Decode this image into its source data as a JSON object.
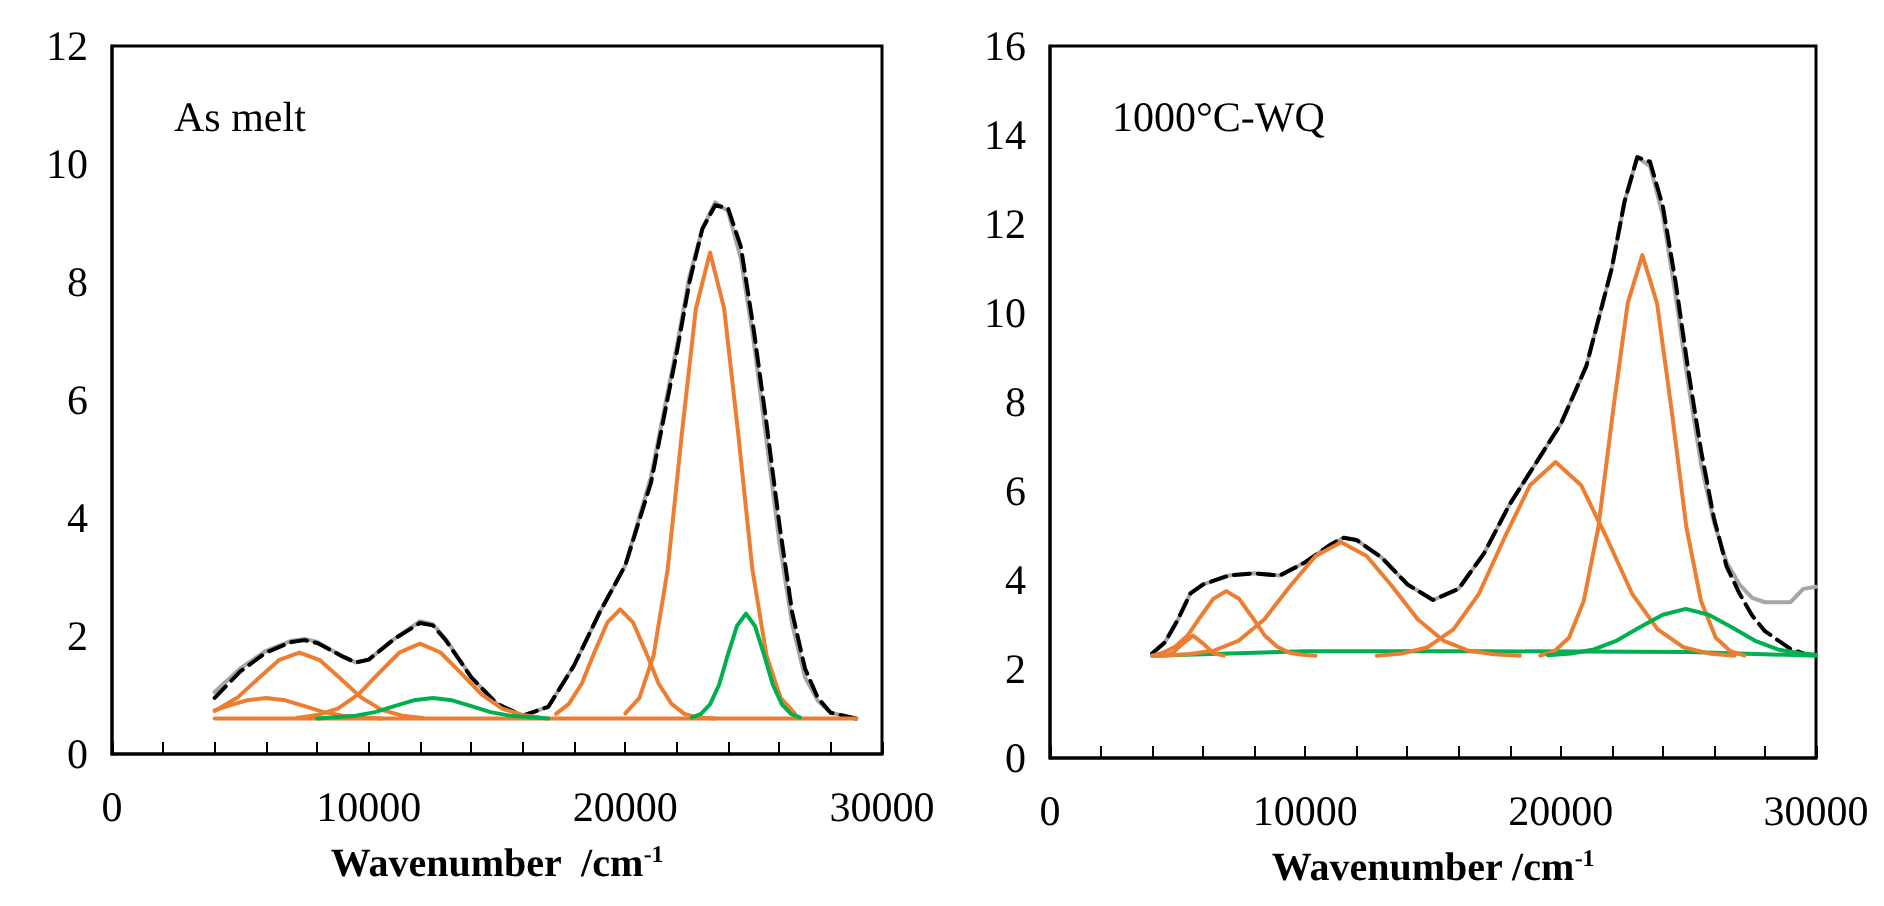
{
  "chart_data": [
    {
      "type": "line",
      "title": "As melt",
      "xlabel": "Wavenumber  /cm$^{-1}$",
      "xlim": [
        0,
        30000
      ],
      "ylim": [
        0,
        12
      ],
      "xticks": [
        0,
        {
          "value": 2000,
          "label": null
        },
        {
          "value": 4000,
          "label": null
        },
        {
          "value": 6000,
          "label": null
        },
        {
          "value": 8000,
          "label": null
        },
        10000,
        {
          "value": 12000,
          "label": null
        },
        {
          "value": 14000,
          "label": null
        },
        {
          "value": 16000,
          "label": null
        },
        {
          "value": 18000,
          "label": null
        },
        20000,
        {
          "value": 22000,
          "label": null
        },
        {
          "value": 24000,
          "label": null
        },
        {
          "value": 26000,
          "label": null
        },
        {
          "value": 28000,
          "label": null
        },
        30000
      ],
      "yticks": [
        0,
        2,
        4,
        6,
        8,
        10,
        12
      ],
      "grid": false,
      "marker": "none",
      "series": [
        {
          "color": "#a6a6a6",
          "x": [
            4000,
            5000,
            6000,
            7000,
            7500,
            8000,
            9000,
            9500,
            10000,
            11000,
            12000,
            12500,
            13000,
            14000,
            15000,
            16000,
            17000,
            18000,
            19000,
            20000,
            21000,
            22000,
            22500,
            23000,
            23500,
            24000,
            24500,
            25000,
            25500,
            26000,
            26500,
            27000,
            27500,
            28000,
            29000
          ],
          "values": [
            1.05,
            1.45,
            1.75,
            1.92,
            1.95,
            1.9,
            1.65,
            1.55,
            1.6,
            1.95,
            2.25,
            2.2,
            1.95,
            1.3,
            0.85,
            0.65,
            0.8,
            1.5,
            2.4,
            3.2,
            4.7,
            6.9,
            8.1,
            8.9,
            9.35,
            9.2,
            8.4,
            7.0,
            5.3,
            3.6,
            2.2,
            1.3,
            0.9,
            0.7,
            0.6
          ]
        },
        {
          "color": "#000000",
          "line_style": "dashed",
          "x": [
            4000,
            5000,
            6000,
            7000,
            7500,
            8000,
            9000,
            9500,
            10000,
            11000,
            12000,
            12500,
            13000,
            14000,
            15000,
            16000,
            17000,
            18000,
            19000,
            20000,
            21000,
            22000,
            22500,
            23000,
            23500,
            24000,
            24500,
            25000,
            25500,
            26000,
            26500,
            27000,
            27500,
            28000,
            29000
          ],
          "values": [
            0.95,
            1.4,
            1.72,
            1.9,
            1.93,
            1.88,
            1.65,
            1.55,
            1.6,
            1.95,
            2.22,
            2.18,
            1.93,
            1.3,
            0.85,
            0.65,
            0.8,
            1.5,
            2.4,
            3.2,
            4.6,
            6.8,
            8.0,
            8.9,
            9.3,
            9.25,
            8.6,
            7.2,
            5.6,
            3.9,
            2.4,
            1.45,
            0.95,
            0.7,
            0.6
          ]
        },
        {
          "color": "#ed7d31",
          "x": [
            4000,
            29000
          ],
          "values": [
            0.6,
            0.6
          ]
        },
        {
          "color": "#ed7d31",
          "x": [
            4000,
            4500,
            5250,
            6000,
            6750,
            7500,
            8250,
            9000,
            9750,
            10500
          ],
          "values": [
            0.74,
            0.81,
            0.91,
            0.95,
            0.91,
            0.81,
            0.71,
            0.65,
            0.62,
            0.6
          ]
        },
        {
          "color": "#ed7d31",
          "x": [
            4000,
            4900,
            5700,
            6500,
            7300,
            8100,
            8900,
            9700,
            10500,
            11300,
            12100
          ],
          "values": [
            0.73,
            0.96,
            1.28,
            1.59,
            1.72,
            1.59,
            1.28,
            0.96,
            0.75,
            0.65,
            0.61
          ]
        },
        {
          "color": "#ed7d31",
          "x": [
            7200,
            8000,
            8800,
            9600,
            10400,
            11200,
            12000,
            12800,
            13600,
            14400,
            15200,
            16000,
            16800
          ],
          "values": [
            0.61,
            0.66,
            0.77,
            1.01,
            1.37,
            1.72,
            1.87,
            1.72,
            1.37,
            1.01,
            0.77,
            0.66,
            0.61
          ]
        },
        {
          "color": "#00b050",
          "x": [
            8000,
            9500,
            10250,
            11000,
            11750,
            12500,
            13250,
            14000,
            14750,
            15500,
            17000
          ],
          "values": [
            0.6,
            0.65,
            0.71,
            0.81,
            0.91,
            0.95,
            0.91,
            0.81,
            0.71,
            0.65,
            0.6
          ]
        },
        {
          "color": "#ed7d31",
          "x": [
            17300,
            17800,
            18300,
            18800,
            19300,
            19800,
            20300,
            20800,
            21300,
            21800,
            22300,
            22800,
            23500
          ],
          "values": [
            0.68,
            0.85,
            1.19,
            1.73,
            2.23,
            2.45,
            2.23,
            1.73,
            1.19,
            0.85,
            0.68,
            0.62,
            0.6
          ]
        },
        {
          "color": "#ed7d31",
          "x": [
            20000,
            20550,
            21100,
            21650,
            22200,
            22750,
            23300,
            23850,
            24400,
            24950,
            25500,
            26050,
            26600
          ],
          "values": [
            0.69,
            0.95,
            1.67,
            3.13,
            5.42,
            7.55,
            8.5,
            7.55,
            5.42,
            3.13,
            1.67,
            0.95,
            0.69
          ]
        },
        {
          "color": "#00b050",
          "x": [
            22600,
            22950,
            23300,
            23650,
            24000,
            24350,
            24700,
            25050,
            25400,
            25750,
            26100,
            26450,
            26800
          ],
          "values": [
            0.62,
            0.68,
            0.84,
            1.17,
            1.69,
            2.17,
            2.38,
            2.17,
            1.69,
            1.17,
            0.84,
            0.68,
            0.62
          ]
        }
      ]
    },
    {
      "type": "line",
      "title": "1000°C-WQ",
      "xlabel": "Wavenumber /cm$^{-1}$",
      "xlim": [
        0,
        30000
      ],
      "ylim": [
        0,
        16
      ],
      "xticks": [
        0,
        {
          "value": 2000,
          "label": null
        },
        {
          "value": 4000,
          "label": null
        },
        {
          "value": 6000,
          "label": null
        },
        {
          "value": 8000,
          "label": null
        },
        10000,
        {
          "value": 12000,
          "label": null
        },
        {
          "value": 14000,
          "label": null
        },
        {
          "value": 16000,
          "label": null
        },
        {
          "value": 18000,
          "label": null
        },
        20000,
        {
          "value": 22000,
          "label": null
        },
        {
          "value": 24000,
          "label": null
        },
        {
          "value": 26000,
          "label": null
        },
        {
          "value": 28000,
          "label": null
        },
        30000
      ],
      "yticks": [
        0,
        2,
        4,
        6,
        8,
        10,
        12,
        14,
        16
      ],
      "grid": false,
      "marker": "none",
      "series": [
        {
          "color": "#a6a6a6",
          "x": [
            4000,
            4500,
            5000,
            5500,
            6000,
            7000,
            8000,
            9000,
            10000,
            11000,
            11500,
            12000,
            13000,
            14000,
            15000,
            16000,
            17000,
            18000,
            19000,
            20000,
            21000,
            22000,
            22500,
            23000,
            23500,
            24000,
            24500,
            25000,
            25500,
            26000,
            26500,
            27000,
            27500,
            28000,
            29000,
            29500,
            30000
          ],
          "values": [
            2.35,
            2.6,
            3.1,
            3.7,
            3.9,
            4.1,
            4.15,
            4.1,
            4.4,
            4.8,
            4.95,
            4.9,
            4.5,
            3.9,
            3.55,
            3.8,
            4.6,
            5.7,
            6.6,
            7.5,
            8.8,
            11.0,
            12.5,
            13.5,
            13.3,
            12.2,
            10.4,
            8.4,
            6.6,
            5.3,
            4.4,
            3.9,
            3.6,
            3.5,
            3.5,
            3.8,
            3.85
          ]
        },
        {
          "color": "#000000",
          "line_style": "dashed",
          "x": [
            4000,
            4500,
            5000,
            5500,
            6000,
            7000,
            8000,
            9000,
            10000,
            11000,
            11500,
            12000,
            13000,
            14000,
            15000,
            16000,
            17000,
            18000,
            19000,
            20000,
            21000,
            22000,
            22500,
            23000,
            23500,
            24000,
            24500,
            25000,
            25500,
            26000,
            26500,
            27000,
            27500,
            28000,
            29000,
            29500,
            30000
          ],
          "values": [
            2.35,
            2.6,
            3.1,
            3.7,
            3.9,
            4.1,
            4.15,
            4.1,
            4.4,
            4.8,
            4.95,
            4.9,
            4.5,
            3.9,
            3.55,
            3.8,
            4.6,
            5.7,
            6.6,
            7.5,
            8.8,
            11.0,
            12.5,
            13.5,
            13.4,
            12.4,
            10.7,
            8.7,
            6.9,
            5.4,
            4.3,
            3.7,
            3.2,
            2.85,
            2.45,
            2.35,
            2.3
          ]
        },
        {
          "color": "#00b050",
          "x": [
            4000,
            10000,
            17000,
            25000,
            30000
          ],
          "values": [
            2.3,
            2.4,
            2.4,
            2.38,
            2.3
          ]
        },
        {
          "color": "#ed7d31",
          "x": [
            4500,
            4800,
            5200,
            5600,
            6000,
            6400,
            6800
          ],
          "values": [
            2.3,
            2.36,
            2.57,
            2.75,
            2.57,
            2.36,
            2.3
          ]
        },
        {
          "color": "#ed7d31",
          "x": [
            4000,
            4400,
            4900,
            5400,
            5900,
            6400,
            6900,
            7400,
            7900,
            8400,
            8900,
            9400,
            9900,
            10400
          ],
          "values": [
            2.3,
            2.36,
            2.5,
            2.76,
            3.18,
            3.58,
            3.75,
            3.58,
            3.18,
            2.76,
            2.5,
            2.36,
            2.32,
            2.3
          ]
        },
        {
          "color": "#ed7d31",
          "x": [
            4300,
            5400,
            6400,
            7400,
            8400,
            9400,
            10400,
            11400,
            12400,
            13400,
            14400,
            15400,
            16400,
            17400,
            18400
          ],
          "values": [
            2.3,
            2.33,
            2.41,
            2.64,
            3.12,
            3.86,
            4.54,
            4.85,
            4.54,
            3.86,
            3.12,
            2.64,
            2.41,
            2.33,
            2.3
          ]
        },
        {
          "color": "#ed7d31",
          "x": [
            12800,
            13800,
            14800,
            15800,
            16800,
            17800,
            18800,
            19800,
            20800,
            21800,
            22800,
            23800,
            24800,
            25800,
            26800
          ],
          "values": [
            2.3,
            2.35,
            2.49,
            2.89,
            3.69,
            4.95,
            6.13,
            6.65,
            6.13,
            4.95,
            3.69,
            2.89,
            2.49,
            2.35,
            2.3
          ]
        },
        {
          "color": "#ed7d31",
          "x": [
            19200,
            19750,
            20325,
            20900,
            21475,
            22050,
            22625,
            23200,
            23775,
            24350,
            24925,
            25500,
            26075,
            26650,
            27200
          ],
          "values": [
            2.3,
            2.4,
            2.7,
            3.52,
            5.18,
            7.79,
            10.22,
            11.3,
            10.22,
            7.79,
            5.18,
            3.52,
            2.7,
            2.4,
            2.3
          ]
        },
        {
          "color": "#00b050",
          "x": [
            19500,
            20400,
            21300,
            22200,
            23100,
            24000,
            24900,
            25800,
            26700,
            27600,
            28500,
            29400,
            30000
          ],
          "values": [
            2.31,
            2.35,
            2.44,
            2.64,
            2.94,
            3.22,
            3.35,
            3.22,
            2.94,
            2.64,
            2.44,
            2.35,
            2.32
          ]
        }
      ]
    }
  ]
}
